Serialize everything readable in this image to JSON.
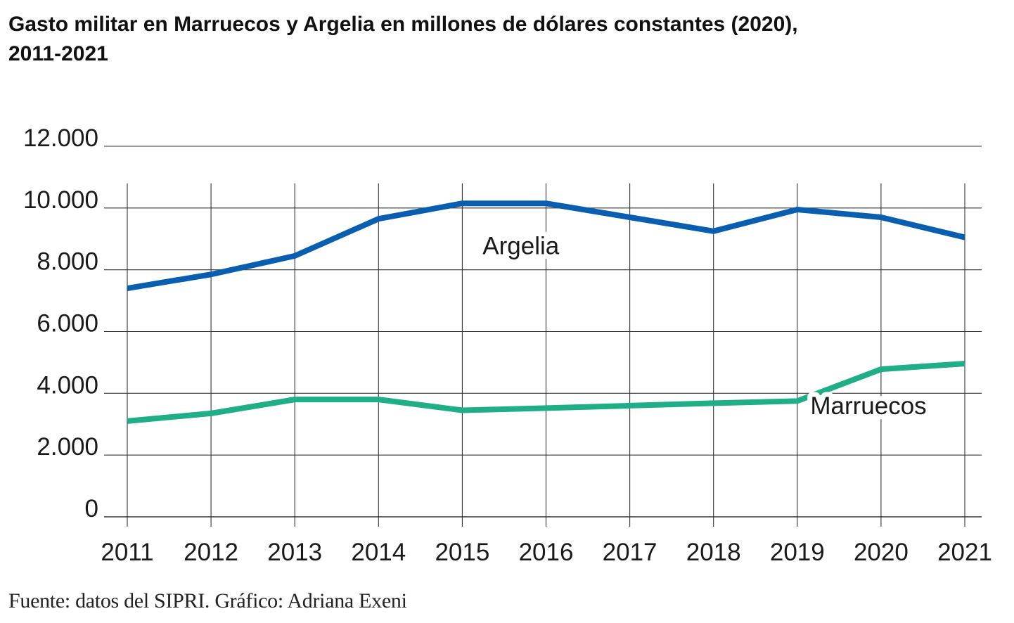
{
  "chart_data": {
    "type": "line",
    "title_line1": "Gasto militar en Marruecos y Argelia en millones de dólares constantes (2020),",
    "title_line2": "2011-2021",
    "source": "Fuente: datos del SIPRI. Gráfico: Adriana Exeni",
    "x": [
      "2011",
      "2012",
      "2013",
      "2014",
      "2015",
      "2016",
      "2017",
      "2018",
      "2019",
      "2020",
      "2021"
    ],
    "y_ticks": [
      0,
      2000,
      4000,
      6000,
      8000,
      10000,
      12000
    ],
    "y_tick_labels": [
      "0",
      "2.000",
      "4.000",
      "6.000",
      "8.000",
      "10.000",
      "12.000"
    ],
    "ylim": [
      0,
      12000
    ],
    "grid": true,
    "series": [
      {
        "name": "Argelia",
        "color": "#0a5eb0",
        "values": [
          7400,
          7850,
          8450,
          9650,
          10150,
          10150,
          9700,
          9250,
          9950,
          9700,
          9050
        ]
      },
      {
        "name": "Marruecos",
        "color": "#1fae86",
        "values": [
          3100,
          3350,
          3800,
          3800,
          3450,
          3520,
          3600,
          3680,
          3750,
          4780,
          4960
        ]
      }
    ]
  }
}
